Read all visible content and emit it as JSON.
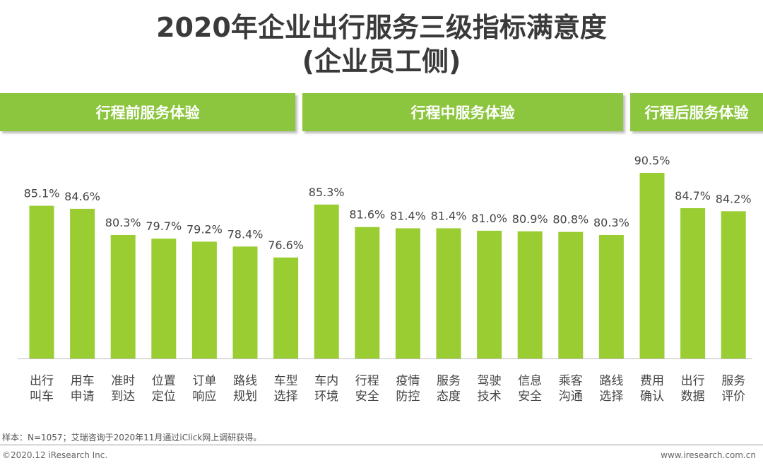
{
  "title_line1": "2020年企业出行服务三级指标满意度",
  "title_line2": "(企业员工侧)",
  "groups": [
    {
      "label": "行程前服务体验"
    },
    {
      "label": "行程中服务体验"
    },
    {
      "label": "行程后服务体验"
    }
  ],
  "colors": {
    "bar": "#9acd32",
    "banner": "#8cc63f"
  },
  "chart_data": {
    "type": "bar",
    "title": "2020年企业出行服务三级指标满意度 (企业员工侧)",
    "categories": [
      [
        "出行",
        "叫车"
      ],
      [
        "用车",
        "申请"
      ],
      [
        "准时",
        "到达"
      ],
      [
        "位置",
        "定位"
      ],
      [
        "订单",
        "响应"
      ],
      [
        "路线",
        "规划"
      ],
      [
        "车型",
        "选择"
      ],
      [
        "车内",
        "环境"
      ],
      [
        "行程",
        "安全"
      ],
      [
        "疫情",
        "防控"
      ],
      [
        "服务",
        "态度"
      ],
      [
        "驾驶",
        "技术"
      ],
      [
        "信息",
        "安全"
      ],
      [
        "乘客",
        "沟通"
      ],
      [
        "路线",
        "选择"
      ],
      [
        "费用",
        "确认"
      ],
      [
        "出行",
        "数据"
      ],
      [
        "服务",
        "评价"
      ]
    ],
    "values": [
      85.1,
      84.6,
      80.3,
      79.7,
      79.2,
      78.4,
      76.6,
      85.3,
      81.6,
      81.4,
      81.4,
      81.0,
      80.9,
      80.8,
      80.3,
      90.5,
      84.7,
      84.2
    ],
    "value_labels": [
      "85.1%",
      "84.6%",
      "80.3%",
      "79.7%",
      "79.2%",
      "78.4%",
      "76.6%",
      "85.3%",
      "81.6%",
      "81.4%",
      "81.4%",
      "81.0%",
      "80.9%",
      "80.8%",
      "80.3%",
      "90.5%",
      "84.7%",
      "84.2%"
    ],
    "group_sizes": [
      7,
      8,
      3
    ],
    "ylim": [
      60,
      92
    ],
    "grid": false,
    "xlabel": "",
    "ylabel": ""
  },
  "footer": {
    "source": "样本：N=1057；艾瑞咨询于2020年11月通过iClick网上调研获得。",
    "copyright": "©2020.12 iResearch Inc.",
    "website": "www.iresearch.com.cn"
  }
}
